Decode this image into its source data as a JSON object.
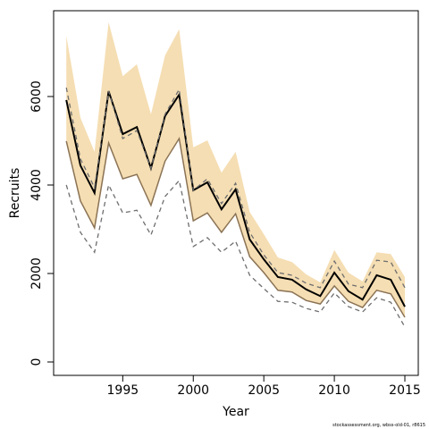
{
  "chart_data": {
    "type": "line",
    "x_label": "Year",
    "y_label": "Recruits",
    "footnote": "stockassessment.org, wbss-old-01, r8615",
    "x": [
      1991,
      1992,
      1993,
      1994,
      1995,
      1996,
      1997,
      1998,
      1999,
      2000,
      2001,
      2002,
      2003,
      2004,
      2005,
      2006,
      2007,
      2008,
      2009,
      2010,
      2011,
      2012,
      2013,
      2014,
      2015
    ],
    "band": {
      "color": "#f5deb3",
      "lower_line_color": "#8b7355",
      "upper": [
        7370,
        5520,
        4750,
        7680,
        6460,
        6730,
        5600,
        6930,
        7520,
        4850,
        5010,
        4280,
        4750,
        3390,
        2890,
        2360,
        2260,
        1980,
        1800,
        2530,
        2020,
        1820,
        2480,
        2440,
        1920
      ],
      "lower": [
        4990,
        3640,
        3030,
        4950,
        4140,
        4240,
        3540,
        4540,
        5050,
        3190,
        3370,
        2930,
        3350,
        2380,
        2020,
        1620,
        1580,
        1390,
        1310,
        1720,
        1370,
        1230,
        1620,
        1540,
        1010
      ]
    },
    "series": [
      {
        "color": "#000000",
        "dashed": false,
        "values": [
          5920,
          4440,
          3820,
          6120,
          5150,
          5310,
          4380,
          5560,
          6040,
          3880,
          4060,
          3450,
          3900,
          2770,
          2320,
          1920,
          1860,
          1640,
          1490,
          2020,
          1600,
          1410,
          1960,
          1860,
          1250
        ]
      },
      {
        "color": "#6e6e6e",
        "dashed": true,
        "values": [
          6200,
          4590,
          3940,
          6120,
          5050,
          5230,
          4380,
          5600,
          6160,
          3880,
          4140,
          3580,
          4040,
          2930,
          2420,
          2020,
          1960,
          1780,
          1680,
          2280,
          1760,
          1680,
          2300,
          2260,
          1680
        ]
      },
      {
        "color": "#6e6e6e",
        "dashed": true,
        "values": [
          4000,
          2930,
          2480,
          4000,
          3370,
          3430,
          2870,
          3740,
          4100,
          2610,
          2810,
          2480,
          2730,
          1960,
          1660,
          1370,
          1350,
          1210,
          1130,
          1560,
          1250,
          1130,
          1450,
          1350,
          790
        ]
      }
    ],
    "xlim": [
      1990.1,
      2015.95
    ],
    "ylim": [
      -303,
      7939
    ],
    "xticks": [
      1995,
      2000,
      2005,
      2010,
      2015
    ],
    "yticks": [
      0,
      2000,
      4000,
      6000
    ]
  }
}
